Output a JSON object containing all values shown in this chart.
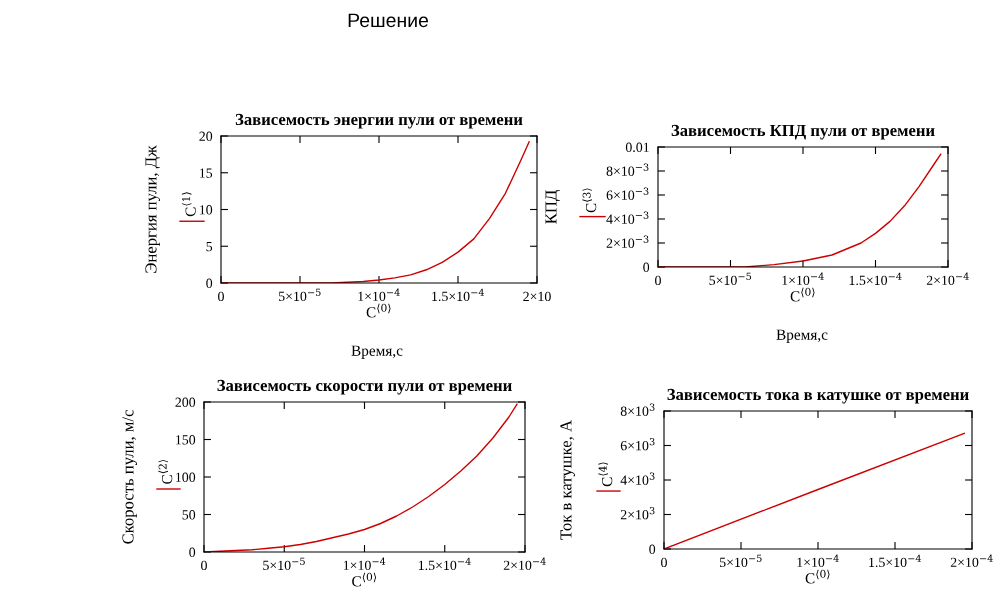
{
  "chart_data": [
    {
      "type": "line",
      "title": "Зависемость энергии пули от времени",
      "xlabel": "C$^{⟨0⟩}$",
      "ylabel": "Энергия пули, Дж",
      "annotations": [
        "Решение",
        "Время,с"
      ],
      "series": [
        {
          "name": "C$^{⟨1⟩}$",
          "color": "#cc0000",
          "x": [
            0,
            7e-05,
            9e-05,
            0.0001,
            0.00011,
            0.00012,
            0.00013,
            0.00014,
            0.00015,
            0.00016,
            0.00017,
            0.00018,
            0.00019,
            0.000195
          ],
          "values": [
            0,
            0,
            0.2,
            0.4,
            0.7,
            1.1,
            1.8,
            2.8,
            4.2,
            6.0,
            8.8,
            12.2,
            16.8,
            19.2
          ]
        }
      ],
      "xlim": [
        0,
        0.0002
      ],
      "xticks": [
        0,
        {
          "value": 5e-05,
          "label": "5×10$^{−5}$"
        },
        {
          "value": 0.0001,
          "label": "1×10$^{−4}$"
        },
        {
          "value": 0.00015,
          "label": "1.5×10$^{−4}$"
        },
        {
          "value": 0.0002,
          "label": "2×10"
        }
      ],
      "ylim": [
        0,
        20
      ],
      "yticks": [
        0,
        5,
        10,
        15,
        20
      ],
      "grid": false,
      "legend": "left"
    },
    {
      "type": "line",
      "title": "Зависемость КПД пули от времени",
      "xlabel": "C$^{⟨0⟩}$",
      "ylabel": "КПД",
      "annotations": [
        "Время,с"
      ],
      "series": [
        {
          "name": "C$^{⟨3⟩}$",
          "color": "#cc0000",
          "x": [
            0,
            6e-05,
            8e-05,
            0.0001,
            0.00012,
            0.00014,
            0.00015,
            0.00016,
            0.00017,
            0.00018,
            0.00019,
            0.000195
          ],
          "values": [
            0,
            0,
            0.0002,
            0.0005,
            0.001,
            0.002,
            0.0028,
            0.0038,
            0.0051,
            0.0067,
            0.0085,
            0.0094
          ]
        }
      ],
      "xlim": [
        0,
        0.0002
      ],
      "xticks": [
        0,
        {
          "value": 5e-05,
          "label": "5×10$^{−5}$"
        },
        {
          "value": 0.0001,
          "label": "1×10$^{−4}$"
        },
        {
          "value": 0.00015,
          "label": "1.5×10$^{−4}$"
        },
        {
          "value": 0.0002,
          "label": "2×10$^{−4}$"
        }
      ],
      "ylim": [
        0,
        0.01
      ],
      "yticks": [
        0,
        {
          "value": 0.002,
          "label": "2×10$^{−3}$"
        },
        {
          "value": 0.004,
          "label": "4×10$^{−3}$"
        },
        {
          "value": 0.006,
          "label": "6×10$^{−3}$"
        },
        {
          "value": 0.008,
          "label": "8×10$^{−3}$"
        },
        0.01
      ],
      "grid": false,
      "legend": "left"
    },
    {
      "type": "line",
      "title": "Зависемость скорости пули от времени",
      "xlabel": "C$^{⟨0⟩}$",
      "ylabel": "Скорость пули, м/с",
      "series": [
        {
          "name": "C$^{⟨2⟩}$",
          "color": "#cc0000",
          "x": [
            0,
            1e-05,
            2e-05,
            3e-05,
            4e-05,
            5e-05,
            6e-05,
            7e-05,
            8e-05,
            9e-05,
            0.0001,
            0.00011,
            0.00012,
            0.00013,
            0.00014,
            0.00015,
            0.00016,
            0.00017,
            0.00018,
            0.00019,
            0.000195
          ],
          "values": [
            0,
            1,
            2,
            3,
            5,
            7,
            10,
            14,
            19,
            24,
            30,
            38,
            48,
            60,
            74,
            90,
            108,
            128,
            152,
            180,
            197
          ]
        }
      ],
      "xlim": [
        0,
        0.0002
      ],
      "xticks": [
        0,
        {
          "value": 5e-05,
          "label": "5×10$^{−5}$"
        },
        {
          "value": 0.0001,
          "label": "1×10$^{−4}$"
        },
        {
          "value": 0.00015,
          "label": "1.5×10$^{−4}$"
        },
        {
          "value": 0.0002,
          "label": "2×10$^{−4}$"
        }
      ],
      "ylim": [
        0,
        200
      ],
      "yticks": [
        0,
        50,
        100,
        150,
        200
      ],
      "grid": false,
      "legend": "left"
    },
    {
      "type": "line",
      "title": "Зависемость тока в катушке от времени",
      "xlabel": "C$^{⟨0⟩}$",
      "ylabel": "Ток в катушке, А",
      "series": [
        {
          "name": "C$^{⟨4⟩}$",
          "color": "#cc0000",
          "x": [
            0,
            0.0001,
            0.000195
          ],
          "values": [
            0,
            3450,
            6700
          ]
        }
      ],
      "xlim": [
        0,
        0.0002
      ],
      "xticks": [
        0,
        {
          "value": 5e-05,
          "label": "5×10$^{−5}$"
        },
        {
          "value": 0.0001,
          "label": "1×10$^{−4}$"
        },
        {
          "value": 0.00015,
          "label": "1.5×10$^{−4}$"
        },
        {
          "value": 0.0002,
          "label": "2×10$^{−4}$"
        }
      ],
      "ylim": [
        0,
        8000
      ],
      "yticks": [
        0,
        {
          "value": 2000,
          "label": "2×10$^{3}$"
        },
        {
          "value": 4000,
          "label": "4×10$^{3}$"
        },
        {
          "value": 6000,
          "label": "6×10$^{3}$"
        },
        {
          "value": 8000,
          "label": "8×10$^{3}$"
        }
      ],
      "grid": false,
      "legend": "left"
    }
  ]
}
